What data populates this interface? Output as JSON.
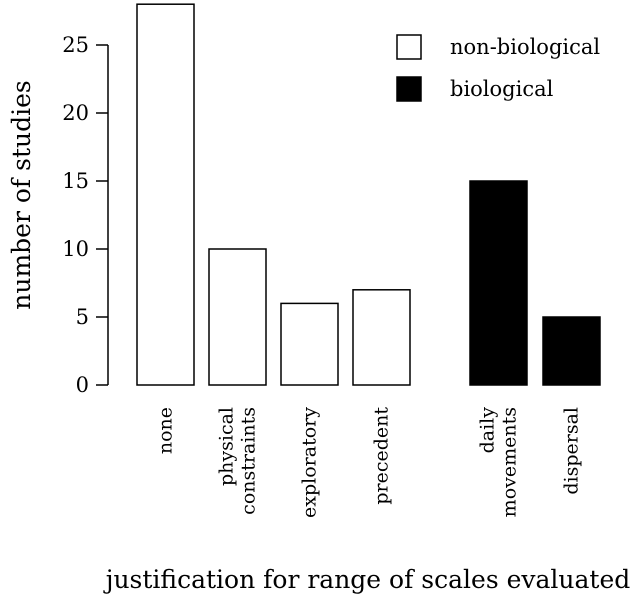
{
  "chart_data": {
    "type": "bar",
    "categories": [
      [
        "none"
      ],
      [
        "physical",
        "constraints"
      ],
      [
        "exploratory"
      ],
      [
        "precedent"
      ],
      [
        "daily",
        "movements"
      ],
      [
        "dispersal"
      ]
    ],
    "values": [
      28,
      10,
      6,
      7,
      15,
      5
    ],
    "groups": [
      "non-biological",
      "non-biological",
      "non-biological",
      "non-biological",
      "biological",
      "biological"
    ],
    "legend": [
      {
        "name": "non-biological",
        "fill": "#ffffff"
      },
      {
        "name": "biological",
        "fill": "#000000"
      }
    ],
    "legend_position": "top-right",
    "xlabel": "justification for range of scales evaluated",
    "ylabel": "number of studies",
    "yticks": [
      0,
      5,
      10,
      15,
      20,
      25
    ],
    "ylim": [
      0,
      28
    ],
    "grid": false
  }
}
